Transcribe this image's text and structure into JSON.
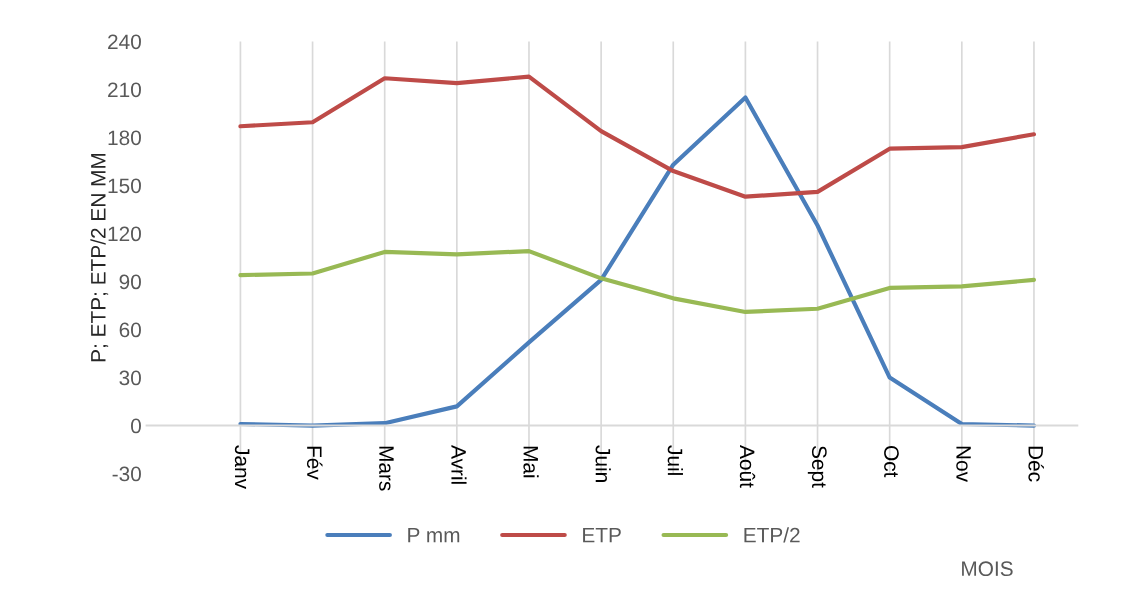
{
  "chart_data": {
    "type": "line",
    "ylabel": "P; ETP; ETP/2 EN MM",
    "xlabel": "MOIS",
    "categories": [
      "Janv",
      "Fév",
      "Mars",
      "Avril",
      "Mai",
      "Juin",
      "Juil",
      "Août",
      "Sept",
      "Oct",
      "Nov",
      "Déc"
    ],
    "series": [
      {
        "name": "P mm",
        "color": "#4a7ebb",
        "values": [
          1,
          0,
          1.5,
          12,
          52,
          91,
          163,
          205,
          125,
          30,
          1,
          0
        ]
      },
      {
        "name": "ETP",
        "color": "#be4b48",
        "values": [
          187,
          189.5,
          217,
          214,
          218,
          184,
          159,
          143,
          146,
          173,
          174,
          182
        ]
      },
      {
        "name": "ETP/2",
        "color": "#98b954",
        "values": [
          94,
          95,
          108.5,
          107,
          109,
          92,
          79.5,
          71,
          73,
          86,
          87,
          91
        ]
      }
    ],
    "ylim": [
      -30,
      240
    ],
    "yticks": [
      -30,
      0,
      30,
      60,
      90,
      120,
      150,
      180,
      210,
      240
    ],
    "grid": "x",
    "legend": "bottom",
    "marker": "none",
    "line_style": "solid"
  }
}
